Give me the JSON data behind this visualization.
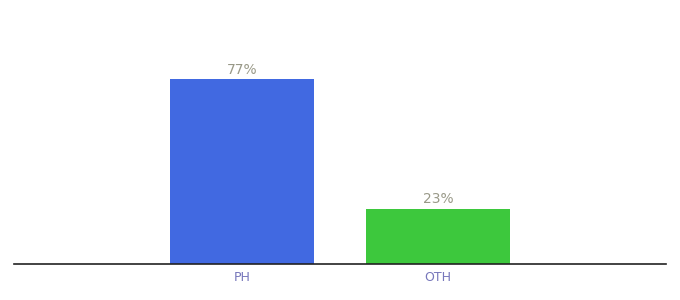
{
  "categories": [
    "PH",
    "OTH"
  ],
  "values": [
    77,
    23
  ],
  "bar_colors": [
    "#4169e1",
    "#3dc83d"
  ],
  "label_texts": [
    "77%",
    "23%"
  ],
  "ylim": [
    0,
    100
  ],
  "background_color": "#ffffff",
  "label_color": "#999988",
  "label_fontsize": 10,
  "tick_label_fontsize": 9,
  "tick_label_color": "#7777bb",
  "x_positions": [
    0.35,
    0.65
  ],
  "bar_width": 0.22,
  "xlim": [
    0.0,
    1.0
  ]
}
